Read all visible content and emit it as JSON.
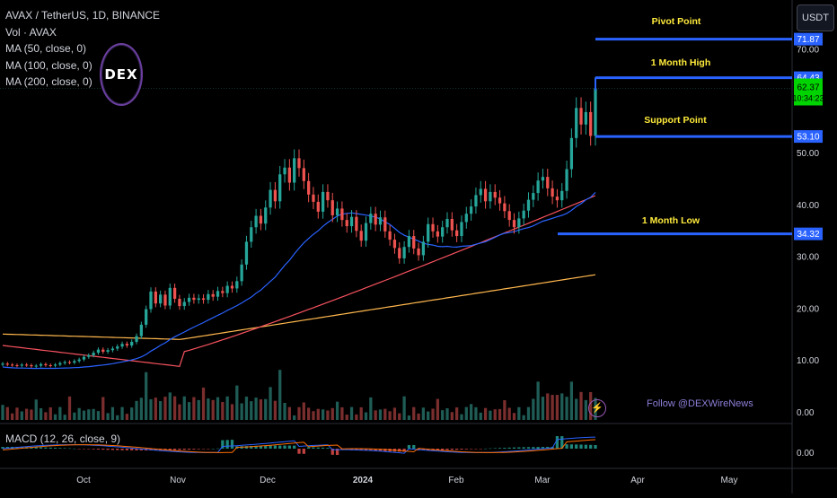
{
  "legend": {
    "title": "AVAX / TetherUS, 1D, BINANCE",
    "vol": "Vol · AVAX",
    "ma50": "MA (50, close, 0)",
    "ma100": "MA (100, close, 0)",
    "ma200": "MA (200, close, 0)"
  },
  "logo_text": "DEX",
  "currency": "USDT",
  "macd_label": "MACD (12, 26, close, 9)",
  "watermark": "Follow @DEXWireNews",
  "colors": {
    "up": "#26a69a",
    "down": "#ef5350",
    "ma50": "#2962ff",
    "ma100": "#f7525f",
    "ma200": "#ffb74d",
    "levels": "#2962ff",
    "level_text": "#ffeb3b",
    "background": "#000000"
  },
  "chart_data": {
    "type": "candlestick",
    "y_axis": {
      "ticks": [
        "0.00",
        "10.00",
        "20.00",
        "30.00",
        "40.00",
        "50.00",
        "70.00"
      ],
      "ylim": [
        0,
        80
      ]
    },
    "x_axis": {
      "ticks": [
        "Oct",
        "Nov",
        "Dec",
        "2024",
        "Feb",
        "Mar",
        "Apr",
        "May"
      ]
    },
    "last_price": "62.37",
    "countdown": "10:34:23",
    "levels": [
      {
        "name": "Pivot Point",
        "value": 71.87,
        "label": "71.87"
      },
      {
        "name": "1 Month High",
        "value": 64.43,
        "label": "64.43"
      },
      {
        "name": "Support Point",
        "value": 53.1,
        "label": "53.10"
      },
      {
        "name": "1 Month Low",
        "value": 34.32,
        "label": "34.32"
      }
    ],
    "price_closes": [
      9.3,
      9.1,
      9.0,
      8.9,
      9.1,
      9.0,
      8.8,
      8.9,
      9.2,
      9.0,
      8.9,
      9.1,
      9.4,
      9.6,
      9.5,
      9.8,
      10.1,
      10.6,
      10.9,
      11.4,
      12.0,
      11.6,
      11.9,
      12.2,
      12.6,
      13.1,
      12.8,
      13.5,
      14.6,
      16.8,
      19.8,
      23.2,
      20.9,
      22.6,
      20.5,
      23.9,
      21.8,
      20.4,
      21.2,
      22.0,
      21.6,
      21.9,
      21.6,
      22.7,
      22.2,
      23.3,
      22.9,
      24.3,
      23.8,
      25.2,
      28.4,
      32.8,
      35.6,
      37.8,
      36.3,
      39.4,
      42.8,
      40.6,
      45.8,
      47.1,
      44.2,
      48.9,
      47.0,
      44.5,
      41.9,
      40.5,
      38.6,
      42.4,
      40.8,
      37.9,
      39.2,
      37.0,
      35.8,
      37.6,
      34.9,
      33.0,
      36.4,
      38.2,
      36.1,
      37.5,
      34.8,
      33.2,
      31.6,
      29.6,
      31.8,
      33.9,
      31.5,
      30.2,
      32.8,
      36.2,
      34.8,
      33.8,
      35.6,
      37.2,
      35.0,
      33.9,
      36.6,
      38.2,
      39.6,
      41.8,
      43.0,
      40.6,
      42.4,
      41.3,
      40.2,
      38.7,
      37.0,
      35.6,
      37.3,
      38.8,
      40.9,
      42.2,
      44.6,
      45.3,
      43.1,
      41.5,
      40.8,
      42.6,
      46.8,
      52.8,
      58.6,
      55.4,
      57.8,
      53.2,
      62.37
    ],
    "ma50_start_end": [
      8.8,
      41.5
    ],
    "ma100_start_end": [
      12.8,
      39.8
    ],
    "ma200_start_end": [
      15.0,
      26.5
    ],
    "volume_last": 13.0,
    "macd_zero": "0.00"
  }
}
